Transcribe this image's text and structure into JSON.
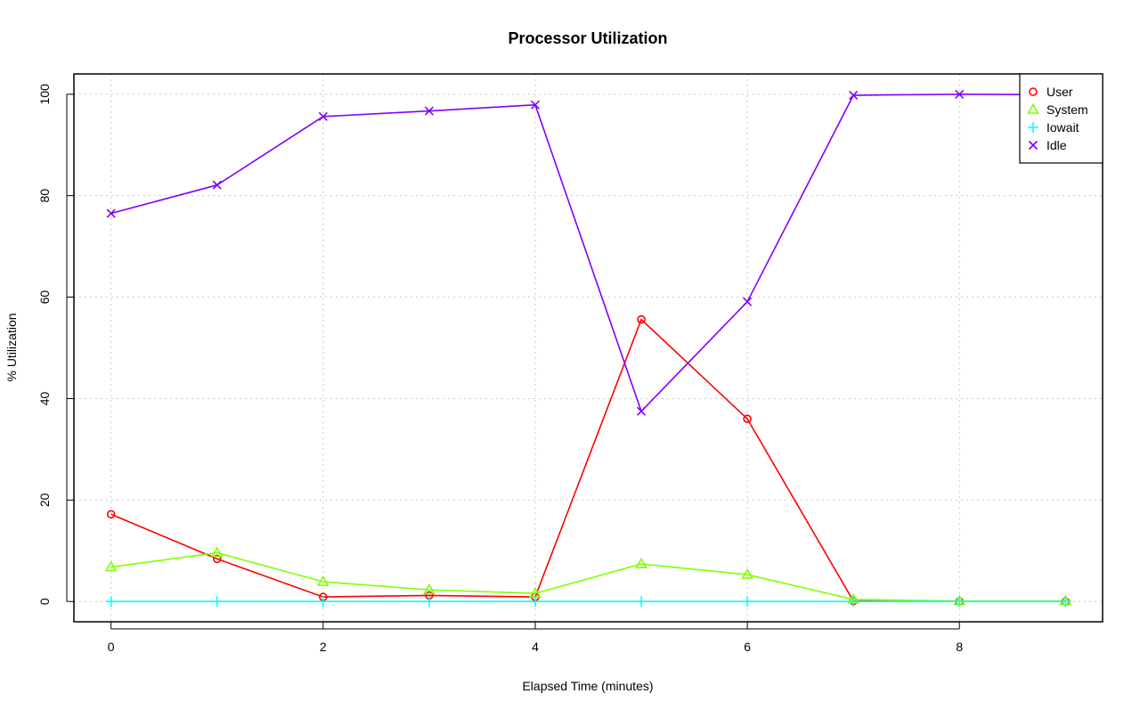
{
  "chart_data": {
    "type": "line",
    "title": "Processor Utilization",
    "xlabel": "Elapsed Time (minutes)",
    "ylabel": "% Utilization",
    "xlim": [
      -0.35,
      9.35
    ],
    "ylim": [
      -4,
      104
    ],
    "xticks": [
      0,
      2,
      4,
      6,
      8
    ],
    "yticks": [
      0,
      20,
      40,
      60,
      80,
      100
    ],
    "grid": true,
    "legend_position": "top-right",
    "x": [
      0,
      1,
      2,
      3,
      4,
      5,
      6,
      7,
      8,
      9
    ],
    "series": [
      {
        "name": "User",
        "color": "#ff0000",
        "marker": "circle",
        "values": [
          17.2,
          8.4,
          0.9,
          1.2,
          0.9,
          55.6,
          36.0,
          0.1,
          0.0,
          0.0
        ]
      },
      {
        "name": "System",
        "color": "#80ff00",
        "marker": "triangle",
        "values": [
          6.8,
          9.6,
          3.9,
          2.3,
          1.6,
          7.4,
          5.3,
          0.4,
          0.1,
          0.1
        ]
      },
      {
        "name": "Iowait",
        "color": "#00ffff",
        "marker": "plus",
        "values": [
          0,
          0,
          0,
          0,
          0,
          0,
          0,
          0,
          0,
          0
        ]
      },
      {
        "name": "Idle",
        "color": "#8000ff",
        "marker": "cross",
        "values": [
          76.5,
          82.1,
          95.6,
          96.7,
          97.9,
          37.5,
          59.1,
          99.8,
          100.0,
          99.9
        ]
      }
    ]
  }
}
